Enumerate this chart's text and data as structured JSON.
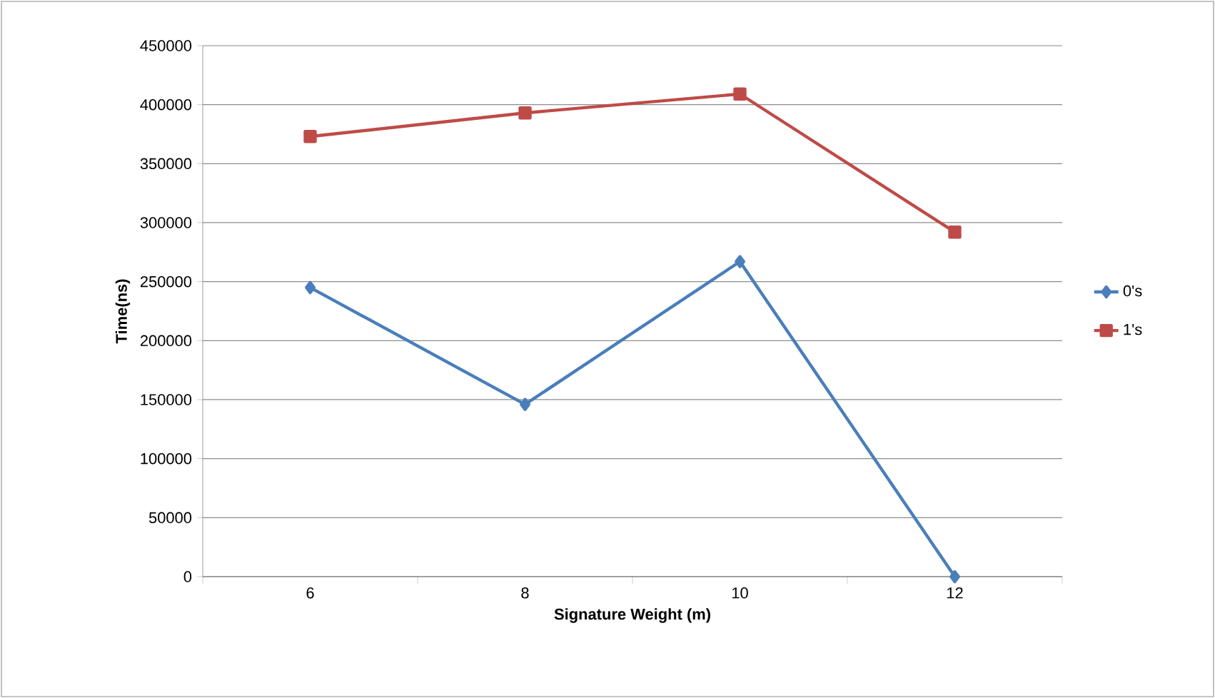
{
  "chart_data": {
    "type": "line",
    "xlabel": "Signature Weight (m)",
    "ylabel": "Time(ns)",
    "categories": [
      "6",
      "8",
      "10",
      "12"
    ],
    "series": [
      {
        "name": "0's",
        "color": "#4a7ebb",
        "marker": "diamond",
        "values": [
          245000,
          146000,
          267000,
          0
        ]
      },
      {
        "name": "1's",
        "color": "#be4b48",
        "marker": "square",
        "values": [
          373000,
          393000,
          409000,
          292000
        ]
      }
    ],
    "ylim": [
      0,
      450000
    ],
    "yticks": [
      0,
      50000,
      100000,
      150000,
      200000,
      250000,
      300000,
      350000,
      400000,
      450000
    ],
    "grid": "y",
    "legend": "right"
  }
}
